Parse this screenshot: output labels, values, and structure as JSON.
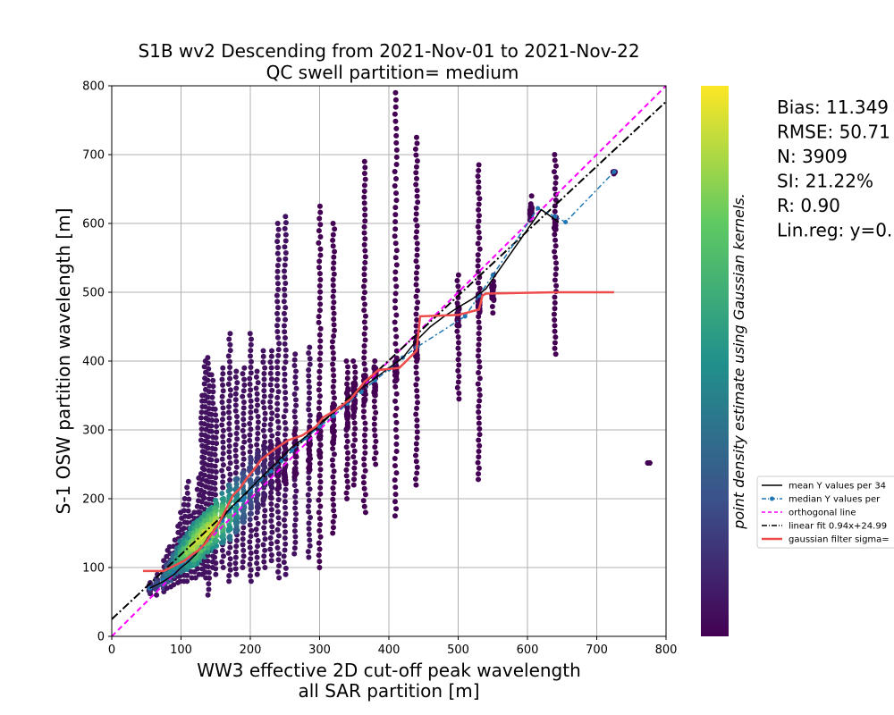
{
  "chart_data": {
    "type": "scatter",
    "title": "S1B wv2 Descending from 2021-Nov-01 to 2021-Nov-22",
    "subtitle": "QC swell partition= medium",
    "xlabel": "WW3 effective 2D cut-off peak wavelength",
    "xlabel2": "all SAR partition [m]",
    "ylabel": "S-1 OSW partition wavelength [m]",
    "xlim": [
      0,
      800
    ],
    "ylim": [
      0,
      800
    ],
    "xticks": [
      0,
      100,
      200,
      300,
      400,
      500,
      600,
      700,
      800
    ],
    "yticks": [
      0,
      100,
      200,
      300,
      400,
      500,
      600,
      700,
      800
    ],
    "grid": true,
    "colorbar_label": "point density estimate using Gaussian kernels.",
    "colormap": [
      "#440154",
      "#3b528b",
      "#21918c",
      "#5ec962",
      "#fde725"
    ],
    "stats": [
      "Bias: 11.349",
      "RMSE: 50.71",
      "N: 3909",
      "SI: 21.22%",
      "R: 0.90",
      "Lin.reg: y=0."
    ],
    "legend": [
      {
        "label": "mean Y values per 34",
        "style": "black-solid"
      },
      {
        "label": "median Y values per",
        "style": "blue-dot-dash"
      },
      {
        "label": "orthogonal line",
        "style": "magenta-dash"
      },
      {
        "label": "linear fit 0.94x+24.99",
        "style": "black-dashdot"
      },
      {
        "label": "gaussian filter sigma=",
        "style": "red-solid"
      }
    ],
    "lines": {
      "orthogonal": [
        [
          0,
          0
        ],
        [
          800,
          800
        ]
      ],
      "linear_fit": [
        [
          0,
          24.99
        ],
        [
          800,
          776.99
        ]
      ],
      "mean_y": [
        [
          55,
          70
        ],
        [
          75,
          80
        ],
        [
          90,
          90
        ],
        [
          100,
          100
        ],
        [
          110,
          108
        ],
        [
          120,
          118
        ],
        [
          130,
          130
        ],
        [
          140,
          145
        ],
        [
          150,
          158
        ],
        [
          160,
          172
        ],
        [
          170,
          185
        ],
        [
          180,
          195
        ],
        [
          190,
          205
        ],
        [
          200,
          215
        ],
        [
          215,
          230
        ],
        [
          230,
          245
        ],
        [
          245,
          260
        ],
        [
          260,
          275
        ],
        [
          280,
          290
        ],
        [
          300,
          310
        ],
        [
          320,
          325
        ],
        [
          340,
          340
        ],
        [
          360,
          360
        ],
        [
          380,
          375
        ],
        [
          400,
          390
        ],
        [
          420,
          405
        ],
        [
          440,
          430
        ],
        [
          460,
          450
        ],
        [
          480,
          465
        ],
        [
          500,
          478
        ],
        [
          520,
          490
        ],
        [
          540,
          505
        ],
        [
          620,
          620
        ],
        [
          645,
          602
        ]
      ],
      "median_y": [
        [
          55,
          70
        ],
        [
          75,
          82
        ],
        [
          90,
          92
        ],
        [
          100,
          102
        ],
        [
          110,
          110
        ],
        [
          120,
          120
        ],
        [
          130,
          130
        ],
        [
          140,
          142
        ],
        [
          150,
          155
        ],
        [
          160,
          168
        ],
        [
          170,
          182
        ],
        [
          180,
          192
        ],
        [
          190,
          200
        ],
        [
          200,
          212
        ],
        [
          215,
          228
        ],
        [
          230,
          240
        ],
        [
          245,
          255
        ],
        [
          260,
          270
        ],
        [
          280,
          288
        ],
        [
          300,
          305
        ],
        [
          320,
          320
        ],
        [
          340,
          338
        ],
        [
          360,
          355
        ],
        [
          380,
          372
        ],
        [
          400,
          388
        ],
        [
          420,
          405
        ],
        [
          440,
          420
        ],
        [
          510,
          465
        ],
        [
          530,
          495
        ],
        [
          550,
          525
        ],
        [
          615,
          622
        ],
        [
          640,
          610
        ],
        [
          655,
          602
        ],
        [
          725,
          675
        ]
      ],
      "gaussian": [
        [
          45,
          95
        ],
        [
          75,
          95
        ],
        [
          85,
          100
        ],
        [
          95,
          105
        ],
        [
          105,
          110
        ],
        [
          115,
          118
        ],
        [
          125,
          125
        ],
        [
          135,
          135
        ],
        [
          145,
          150
        ],
        [
          155,
          165
        ],
        [
          165,
          185
        ],
        [
          175,
          205
        ],
        [
          185,
          215
        ],
        [
          195,
          230
        ],
        [
          205,
          242
        ],
        [
          215,
          256
        ],
        [
          235,
          272
        ],
        [
          255,
          285
        ],
        [
          275,
          292
        ],
        [
          295,
          305
        ],
        [
          305,
          318
        ],
        [
          325,
          330
        ],
        [
          345,
          345
        ],
        [
          365,
          370
        ],
        [
          385,
          387
        ],
        [
          415,
          390
        ],
        [
          425,
          400
        ],
        [
          440,
          415
        ],
        [
          445,
          465
        ],
        [
          500,
          467
        ],
        [
          530,
          475
        ],
        [
          535,
          495
        ],
        [
          540,
          498
        ],
        [
          640,
          500
        ],
        [
          725,
          500
        ]
      ]
    },
    "scatter_columns": [
      {
        "x": 55,
        "ymin": 62,
        "ymax": 78,
        "dense": [
          65,
          75
        ]
      },
      {
        "x": 65,
        "ymin": 60,
        "ymax": 90,
        "dense": [
          65,
          85
        ]
      },
      {
        "x": 75,
        "ymin": 65,
        "ymax": 110,
        "dense": [
          70,
          95
        ]
      },
      {
        "x": 80,
        "ymin": 70,
        "ymax": 125,
        "dense": [
          75,
          105
        ]
      },
      {
        "x": 85,
        "ymin": 72,
        "ymax": 130,
        "dense": [
          80,
          110
        ]
      },
      {
        "x": 90,
        "ymin": 75,
        "ymax": 140,
        "dense": [
          85,
          120
        ]
      },
      {
        "x": 95,
        "ymin": 78,
        "ymax": 160,
        "dense": [
          90,
          130
        ]
      },
      {
        "x": 100,
        "ymin": 80,
        "ymax": 180,
        "dense": [
          90,
          140
        ]
      },
      {
        "x": 105,
        "ymin": 80,
        "ymax": 200,
        "dense": [
          95,
          145
        ]
      },
      {
        "x": 110,
        "ymin": 80,
        "ymax": 225,
        "dense": [
          95,
          150
        ]
      },
      {
        "x": 115,
        "ymin": 85,
        "ymax": 175,
        "dense": [
          100,
          160
        ]
      },
      {
        "x": 120,
        "ymin": 85,
        "ymax": 180,
        "dense": [
          100,
          165
        ]
      },
      {
        "x": 125,
        "ymin": 90,
        "ymax": 230,
        "dense": [
          105,
          170
        ]
      },
      {
        "x": 130,
        "ymin": 90,
        "ymax": 350,
        "dense": [
          110,
          175
        ]
      },
      {
        "x": 135,
        "ymin": 85,
        "ymax": 400,
        "dense": [
          115,
          180
        ]
      },
      {
        "x": 140,
        "ymin": 60,
        "ymax": 405,
        "dense": [
          120,
          185
        ]
      },
      {
        "x": 145,
        "ymin": 100,
        "ymax": 380,
        "dense": [
          125,
          190
        ]
      },
      {
        "x": 150,
        "ymin": 90,
        "ymax": 330,
        "dense": [
          130,
          200
        ]
      },
      {
        "x": 160,
        "ymin": 100,
        "ymax": 390,
        "dense": [
          135,
          210
        ]
      },
      {
        "x": 170,
        "ymin": 80,
        "ymax": 440,
        "dense": [
          140,
          220
        ]
      },
      {
        "x": 180,
        "ymin": 90,
        "ymax": 385,
        "dense": [
          150,
          230
        ]
      },
      {
        "x": 190,
        "ymin": 100,
        "ymax": 390,
        "dense": [
          160,
          240
        ]
      },
      {
        "x": 200,
        "ymin": 80,
        "ymax": 440,
        "dense": [
          170,
          260
        ]
      },
      {
        "x": 210,
        "ymin": 90,
        "ymax": 385,
        "dense": [
          180,
          270
        ]
      },
      {
        "x": 220,
        "ymin": 100,
        "ymax": 415,
        "dense": [
          190,
          280
        ]
      },
      {
        "x": 230,
        "ymin": 110,
        "ymax": 415,
        "dense": [
          200,
          280
        ]
      },
      {
        "x": 240,
        "ymin": 85,
        "ymax": 600,
        "dense": [
          210,
          290
        ]
      },
      {
        "x": 250,
        "ymin": 90,
        "ymax": 610,
        "dense": [
          220,
          290
        ]
      },
      {
        "x": 265,
        "ymin": 120,
        "ymax": 410,
        "dense": [
          230,
          300
        ]
      },
      {
        "x": 285,
        "ymin": 115,
        "ymax": 420,
        "dense": [
          240,
          310
        ]
      },
      {
        "x": 300,
        "ymin": 100,
        "ymax": 625,
        "dense": [
          260,
          320
        ]
      },
      {
        "x": 320,
        "ymin": 150,
        "ymax": 600,
        "dense": [
          280,
          340
        ]
      },
      {
        "x": 340,
        "ymin": 200,
        "ymax": 400,
        "dense": [
          300,
          360
        ]
      },
      {
        "x": 350,
        "ymin": 220,
        "ymax": 400,
        "dense": [
          320,
          370
        ]
      },
      {
        "x": 365,
        "ymin": 180,
        "ymax": 690,
        "dense": [
          340,
          380
        ]
      },
      {
        "x": 380,
        "ymin": 250,
        "ymax": 400,
        "dense": [
          350,
          390
        ]
      },
      {
        "x": 410,
        "ymin": 175,
        "ymax": 790,
        "dense": [
          370,
          400
        ]
      },
      {
        "x": 440,
        "ymin": 220,
        "ymax": 725,
        "dense": [
          400,
          430
        ]
      },
      {
        "x": 500,
        "ymin": 345,
        "ymax": 525,
        "dense": [
          450,
          480
        ]
      },
      {
        "x": 530,
        "ymin": 228,
        "ymax": 685,
        "dense": [
          470,
          500
        ]
      },
      {
        "x": 550,
        "ymin": 470,
        "ymax": 525,
        "dense": [
          490,
          510
        ]
      },
      {
        "x": 605,
        "ymin": 605,
        "ymax": 640,
        "dense": [
          610,
          625
        ]
      },
      {
        "x": 640,
        "ymin": 410,
        "ymax": 700,
        "dense": [
          590,
          610
        ]
      },
      {
        "x": 725,
        "ymin": 672,
        "ymax": 676,
        "dense": [
          674,
          675
        ]
      },
      {
        "x": 775,
        "ymin": 252,
        "ymax": 252,
        "dense": [
          252,
          252
        ]
      }
    ]
  }
}
